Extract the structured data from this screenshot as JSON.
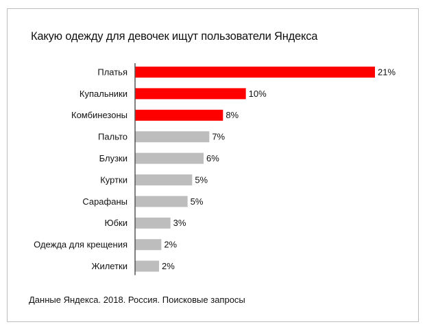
{
  "chart_data": {
    "type": "bar",
    "orientation": "horizontal",
    "title": "Какую одежду для девочек ищут пользователи Яндекса",
    "categories": [
      "Платья",
      "Купальники",
      "Комбинезоны",
      "Пальто",
      "Блузки",
      "Куртки",
      "Сарафаны",
      "Юбки",
      "Одежда для крещения",
      "Жилетки"
    ],
    "values": [
      21,
      9.7,
      7.7,
      6.5,
      6.0,
      5.0,
      4.6,
      3.1,
      2.3,
      2.1
    ],
    "data_labels": [
      "21%",
      "10%",
      "8%",
      "7%",
      "6%",
      "5%",
      "5%",
      "3%",
      "2%",
      "2%"
    ],
    "highlight_count": 3,
    "colors": {
      "highlight": "#ff0000",
      "default": "#bdbdbd",
      "axis": "#555555"
    },
    "xlim": [
      0,
      21
    ],
    "grid": false,
    "legend": "none"
  },
  "footnote": "Данные Яндекса. 2018. Россия. Поисковые запросы"
}
